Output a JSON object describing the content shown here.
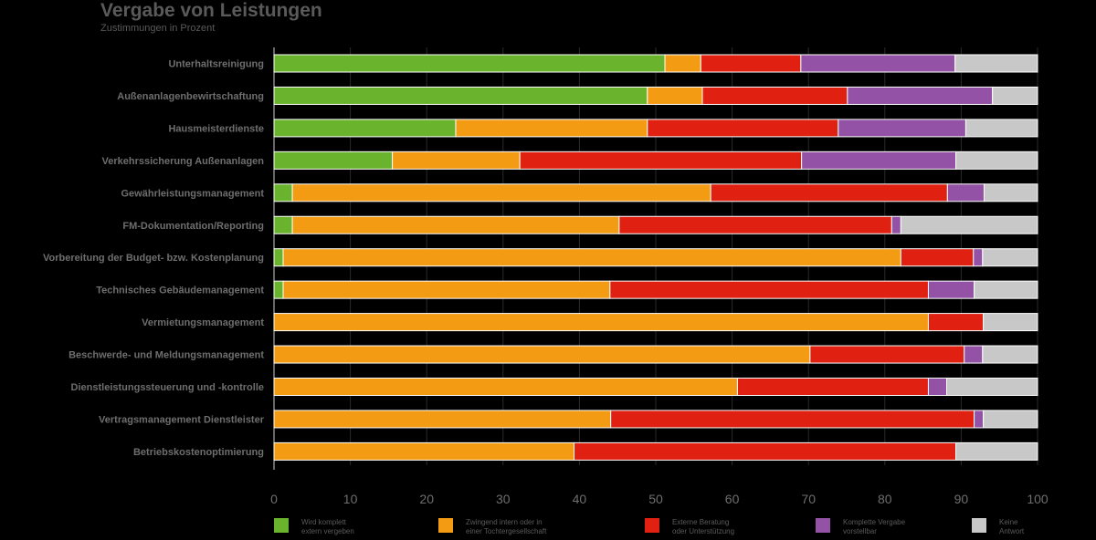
{
  "chart_data": {
    "type": "bar",
    "orientation": "horizontal",
    "stacked": true,
    "title": "Vergabe von Leistungen",
    "subtitle": "Zustimmungen in Prozent",
    "xlim": [
      0,
      100
    ],
    "xticks": [
      0,
      10,
      20,
      30,
      40,
      50,
      60,
      70,
      80,
      90,
      100
    ],
    "grid": true,
    "legend_position": "bottom",
    "categories": [
      "Unterhaltsreinigung",
      "Außenanlagenbewirtschaftung",
      "Hausmeisterdienste",
      "Verkehrssicherung Außenanlagen",
      "Gewährleistungsmanagement",
      "FM-Dokumentation/Reporting",
      "Vorbereitung der Budget- bzw. Kostenplanung",
      "Technisches Gebäudemanagement",
      "Vermietungsmanagement",
      "Beschwerde- und Meldungsmanagement",
      "Dienstleistungssteuerung und -kontrolle",
      "Vertragsmanagement Dienstleister",
      "Betriebskostenoptimierung"
    ],
    "series": [
      {
        "name": "Wird komplett extern vergeben",
        "legend_lines": [
          "Wird komplett",
          "extern vergeben"
        ],
        "color": "#6ab42d",
        "values": [
          51.2,
          48.9,
          23.8,
          15.5,
          2.4,
          2.4,
          1.2,
          1.2,
          0,
          0,
          0,
          0,
          0
        ]
      },
      {
        "name": "Zwingend intern oder in einer Tochtergesellschaft",
        "legend_lines": [
          "Zwingend intern oder in",
          "einer Tochtergesellschaft"
        ],
        "color": "#f39c13",
        "values": [
          4.7,
          7.2,
          25.1,
          16.7,
          54.8,
          42.8,
          80.9,
          42.8,
          85.7,
          70.2,
          60.7,
          44.1,
          39.3
        ]
      },
      {
        "name": "Externe Beratung oder Unterstützung",
        "legend_lines": [
          "Externe Beratung",
          "oder Unterstützung"
        ],
        "color": "#e02010",
        "values": [
          13.1,
          19.0,
          25.0,
          36.9,
          31.0,
          35.7,
          9.5,
          41.7,
          7.2,
          20.2,
          25.0,
          47.6,
          50.0
        ]
      },
      {
        "name": "Komplette Vergabe vorstellbar",
        "legend_lines": [
          "Komplette Vergabe",
          "vorstellbar"
        ],
        "color": "#9352a5",
        "values": [
          20.2,
          19.0,
          16.7,
          20.2,
          4.8,
          1.2,
          1.2,
          6.0,
          0,
          2.4,
          2.4,
          1.2,
          0
        ]
      },
      {
        "name": "Keine Antwort",
        "legend_lines": [
          "Keine",
          "Antwort"
        ],
        "color": "#c8c8c8",
        "values": [
          10.8,
          5.9,
          9.4,
          10.7,
          7.0,
          17.9,
          7.2,
          8.3,
          7.1,
          7.2,
          11.9,
          7.1,
          10.7
        ]
      }
    ]
  }
}
